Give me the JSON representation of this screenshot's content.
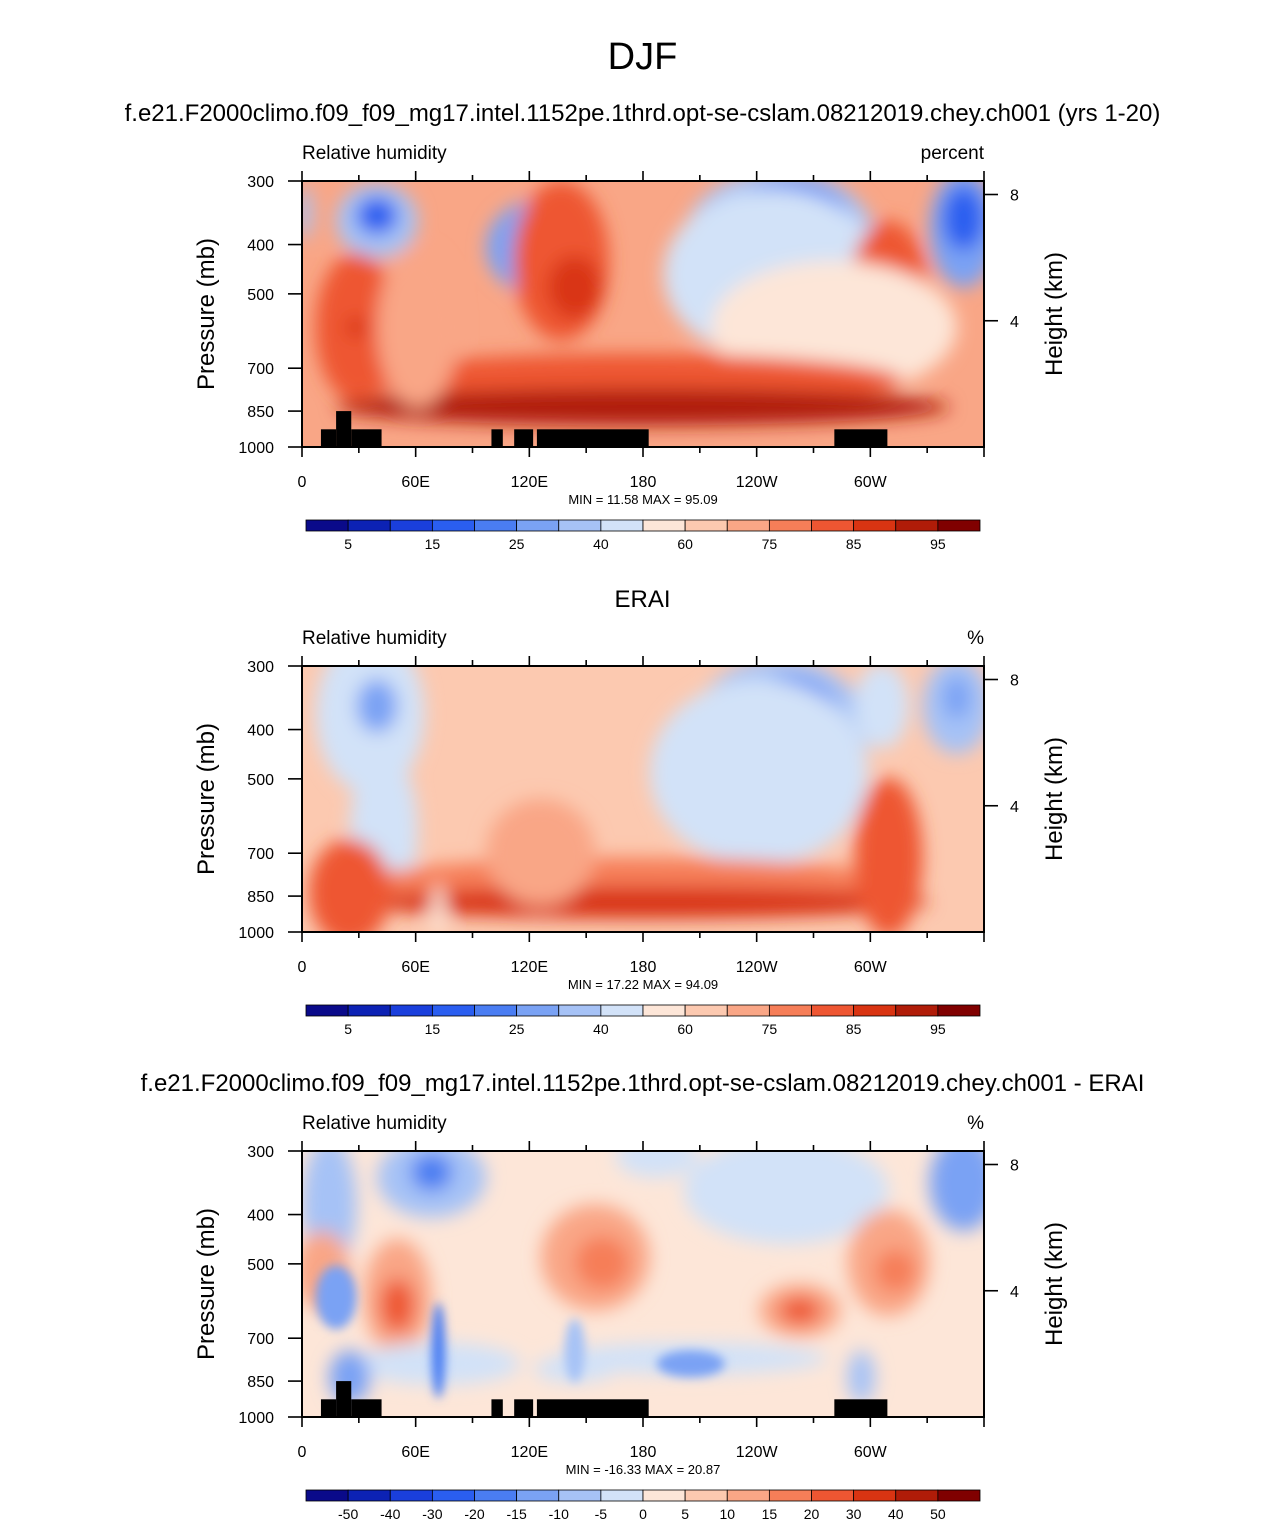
{
  "page_title": "DJF",
  "x_ticks": [
    "0",
    "60E",
    "120E",
    "180",
    "120W",
    "60W"
  ],
  "y_ticks": [
    "300",
    "400",
    "500",
    "700",
    "850",
    "1000"
  ],
  "height_ticks": [
    "8",
    "4"
  ],
  "panels": [
    {
      "title": "f.e21.F2000climo.f09_f09_mg17.intel.1152pe.1thrd.opt-se-cslam.08212019.chey.ch001 (yrs 1-20)",
      "left_label": "Relative humidity",
      "right_label": "percent",
      "ylabel": "Pressure (mb)",
      "ylabel_right": "Height (km)",
      "stats": "MIN =  11.58  MAX =  95.09",
      "colorbar_labels": [
        "5",
        "15",
        "25",
        "40",
        "60",
        "75",
        "85",
        "95"
      ]
    },
    {
      "title": "ERAI",
      "left_label": "Relative humidity",
      "right_label": "%",
      "ylabel": "Pressure (mb)",
      "ylabel_right": "Height (km)",
      "stats": "MIN =  17.22  MAX =  94.09",
      "colorbar_labels": [
        "5",
        "15",
        "25",
        "40",
        "60",
        "75",
        "85",
        "95"
      ]
    },
    {
      "title": "f.e21.F2000climo.f09_f09_mg17.intel.1152pe.1thrd.opt-se-cslam.08212019.chey.ch001 - ERAI",
      "left_label": "Relative humidity",
      "right_label": "%",
      "ylabel": "Pressure (mb)",
      "ylabel_right": "Height (km)",
      "stats": "MIN = -16.33  MAX =  20.87",
      "colorbar_labels": [
        "-50",
        "-40",
        "-30",
        "-20",
        "-15",
        "-10",
        "-5",
        "0",
        "5",
        "10",
        "15",
        "20",
        "30",
        "40",
        "50"
      ]
    }
  ],
  "colors": {
    "palette": [
      "#0a0a8a",
      "#0c22b4",
      "#1a3fdc",
      "#2a5ef0",
      "#4a7df2",
      "#7aa2f4",
      "#a6c2f6",
      "#d2e2f8",
      "#fde6d8",
      "#fcc9b0",
      "#f9a686",
      "#f67e58",
      "#ee5632",
      "#d93412",
      "#b01c08",
      "#800000"
    ],
    "background": "#ffffff",
    "land_mask": "#000000"
  },
  "chart_data": [
    {
      "type": "contour",
      "title": "f.e21.F2000climo.f09_f09_mg17.intel.1152pe.1thrd.opt-se-cslam.08212019.chey.ch001 (yrs 1-20)",
      "variable": "Relative humidity",
      "units": "percent",
      "x_ticks": [
        "0",
        "60E",
        "120E",
        "180",
        "120W",
        "60W"
      ],
      "xlim": [
        0,
        360
      ],
      "ylabel": "Pressure (mb)",
      "ylim": [
        1000,
        300
      ],
      "yscale": "log",
      "y2label": "Height (km)",
      "min": 11.58,
      "max": 95.09,
      "contour_levels": [
        5,
        10,
        15,
        20,
        25,
        30,
        40,
        50,
        60,
        70,
        75,
        80,
        85,
        90,
        95
      ],
      "colorbar_ticks": [
        5,
        15,
        25,
        40,
        60,
        75,
        85,
        95
      ]
    },
    {
      "type": "contour",
      "title": "ERAI",
      "variable": "Relative humidity",
      "units": "%",
      "x_ticks": [
        "0",
        "60E",
        "120E",
        "180",
        "120W",
        "60W"
      ],
      "xlim": [
        0,
        360
      ],
      "ylabel": "Pressure (mb)",
      "ylim": [
        1000,
        300
      ],
      "yscale": "log",
      "y2label": "Height (km)",
      "min": 17.22,
      "max": 94.09,
      "contour_levels": [
        5,
        10,
        15,
        20,
        25,
        30,
        40,
        50,
        60,
        70,
        75,
        80,
        85,
        90,
        95
      ],
      "colorbar_ticks": [
        5,
        15,
        25,
        40,
        60,
        75,
        85,
        95
      ]
    },
    {
      "type": "contour",
      "title": "f.e21.F2000climo.f09_f09_mg17.intel.1152pe.1thrd.opt-se-cslam.08212019.chey.ch001 - ERAI",
      "variable": "Relative humidity",
      "units": "%",
      "x_ticks": [
        "0",
        "60E",
        "120E",
        "180",
        "120W",
        "60W"
      ],
      "xlim": [
        0,
        360
      ],
      "ylabel": "Pressure (mb)",
      "ylim": [
        1000,
        300
      ],
      "yscale": "log",
      "y2label": "Height (km)",
      "min": -16.33,
      "max": 20.87,
      "contour_levels": [
        -50,
        -40,
        -30,
        -20,
        -15,
        -10,
        -5,
        0,
        5,
        10,
        15,
        20,
        30,
        40,
        50
      ],
      "colorbar_ticks": [
        -50,
        -40,
        -30,
        -20,
        -15,
        -10,
        -5,
        0,
        5,
        10,
        15,
        20,
        30,
        40,
        50
      ]
    }
  ]
}
